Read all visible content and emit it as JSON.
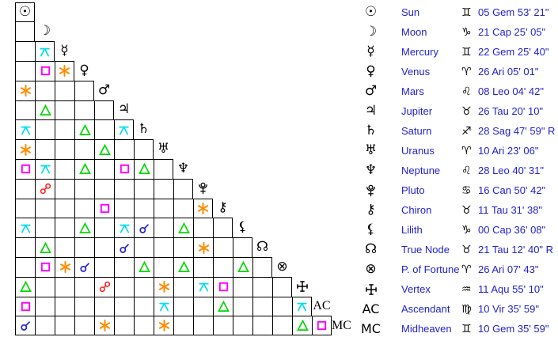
{
  "colors": {
    "background": "#ffffff",
    "grid_line": "#000000",
    "glyph_black": "#000000",
    "table_text_blue": "#2222cc",
    "aspects": {
      "conjunction": "#2323cf",
      "sextile": "#ff8c00",
      "square": "#ff00ff",
      "trine": "#00d800",
      "opposition": "#ff2222",
      "quincunx": "#00dcf0"
    }
  },
  "chart_data": {
    "type": "table",
    "title": "Natal aspect grid (aspectarian) with planet positions",
    "planets": [
      {
        "name": "Sun",
        "glyph": "☉",
        "sign_glyph": "♊",
        "position": "05 Gem 53' 21\""
      },
      {
        "name": "Moon",
        "glyph": "☽",
        "sign_glyph": "♑",
        "position": "21 Cap 25' 05\""
      },
      {
        "name": "Mercury",
        "glyph": "☿",
        "sign_glyph": "♊",
        "position": "22 Gem 25' 40\""
      },
      {
        "name": "Venus",
        "glyph": "♀",
        "sign_glyph": "♈",
        "position": "26 Ari 05' 01\""
      },
      {
        "name": "Mars",
        "glyph": "♂",
        "sign_glyph": "♌",
        "position": "08 Leo 04' 42\""
      },
      {
        "name": "Jupiter",
        "glyph": "♃",
        "sign_glyph": "♉",
        "position": "26 Tau 20' 10\""
      },
      {
        "name": "Saturn",
        "glyph": "♄",
        "sign_glyph": "♐",
        "position": "28 Sag 47' 59\" R"
      },
      {
        "name": "Uranus",
        "glyph": "♅",
        "sign_glyph": "♈",
        "position": "10 Ari 23' 06\""
      },
      {
        "name": "Neptune",
        "glyph": "♆",
        "sign_glyph": "♌",
        "position": "28 Leo 40' 31\""
      },
      {
        "name": "Pluto",
        "glyph": "{pluto}",
        "sign_glyph": "♋",
        "position": "16 Can 50' 42\""
      },
      {
        "name": "Chiron",
        "glyph": "⚷",
        "sign_glyph": "♉",
        "position": "11 Tau 31' 38\""
      },
      {
        "name": "Lilith",
        "glyph": "⚸",
        "sign_glyph": "♑",
        "position": "00 Cap 36' 08\""
      },
      {
        "name": "True Node",
        "glyph": "☊",
        "sign_glyph": "♉",
        "position": "21 Tau 12' 40\" R"
      },
      {
        "name": "P. of Fortune",
        "glyph": "⊗",
        "sign_glyph": "♈",
        "position": "26 Ari 07' 43\""
      },
      {
        "name": "Vertex",
        "glyph": "{vertex}",
        "sign_glyph": "♒",
        "position": "11 Aqu 55' 10\""
      },
      {
        "name": "Ascendant",
        "glyph": "AC",
        "sign_glyph": "♍",
        "position": "10 Vir 35' 59\""
      },
      {
        "name": "Midheaven",
        "glyph": "MC",
        "sign_glyph": "♊",
        "position": "10 Gem 35' 59\""
      }
    ],
    "aspects": [
      {
        "row": 3,
        "col": 2,
        "type": "quincunx"
      },
      {
        "row": 4,
        "col": 2,
        "type": "square"
      },
      {
        "row": 4,
        "col": 3,
        "type": "sextile"
      },
      {
        "row": 5,
        "col": 1,
        "type": "sextile"
      },
      {
        "row": 6,
        "col": 2,
        "type": "trine"
      },
      {
        "row": 7,
        "col": 1,
        "type": "quincunx"
      },
      {
        "row": 7,
        "col": 4,
        "type": "trine"
      },
      {
        "row": 7,
        "col": 6,
        "type": "quincunx"
      },
      {
        "row": 8,
        "col": 1,
        "type": "sextile"
      },
      {
        "row": 8,
        "col": 5,
        "type": "trine"
      },
      {
        "row": 9,
        "col": 1,
        "type": "square"
      },
      {
        "row": 9,
        "col": 2,
        "type": "quincunx"
      },
      {
        "row": 9,
        "col": 4,
        "type": "trine"
      },
      {
        "row": 9,
        "col": 6,
        "type": "square"
      },
      {
        "row": 9,
        "col": 7,
        "type": "trine"
      },
      {
        "row": 10,
        "col": 2,
        "type": "opposition"
      },
      {
        "row": 11,
        "col": 5,
        "type": "square"
      },
      {
        "row": 11,
        "col": 10,
        "type": "sextile"
      },
      {
        "row": 12,
        "col": 1,
        "type": "quincunx"
      },
      {
        "row": 12,
        "col": 4,
        "type": "trine"
      },
      {
        "row": 12,
        "col": 6,
        "type": "quincunx"
      },
      {
        "row": 12,
        "col": 7,
        "type": "conjunction"
      },
      {
        "row": 12,
        "col": 9,
        "type": "trine"
      },
      {
        "row": 13,
        "col": 2,
        "type": "trine"
      },
      {
        "row": 13,
        "col": 6,
        "type": "conjunction"
      },
      {
        "row": 13,
        "col": 10,
        "type": "sextile"
      },
      {
        "row": 14,
        "col": 2,
        "type": "square"
      },
      {
        "row": 14,
        "col": 3,
        "type": "sextile"
      },
      {
        "row": 14,
        "col": 4,
        "type": "conjunction"
      },
      {
        "row": 14,
        "col": 7,
        "type": "trine"
      },
      {
        "row": 14,
        "col": 9,
        "type": "trine"
      },
      {
        "row": 14,
        "col": 12,
        "type": "trine"
      },
      {
        "row": 15,
        "col": 1,
        "type": "trine"
      },
      {
        "row": 15,
        "col": 5,
        "type": "opposition"
      },
      {
        "row": 15,
        "col": 8,
        "type": "sextile"
      },
      {
        "row": 15,
        "col": 10,
        "type": "quincunx"
      },
      {
        "row": 15,
        "col": 11,
        "type": "square"
      },
      {
        "row": 16,
        "col": 1,
        "type": "square"
      },
      {
        "row": 16,
        "col": 8,
        "type": "quincunx"
      },
      {
        "row": 16,
        "col": 11,
        "type": "trine"
      },
      {
        "row": 16,
        "col": 15,
        "type": "quincunx"
      },
      {
        "row": 17,
        "col": 1,
        "type": "conjunction"
      },
      {
        "row": 17,
        "col": 5,
        "type": "sextile"
      },
      {
        "row": 17,
        "col": 8,
        "type": "sextile"
      },
      {
        "row": 17,
        "col": 15,
        "type": "trine"
      },
      {
        "row": 17,
        "col": 16,
        "type": "square"
      }
    ]
  }
}
